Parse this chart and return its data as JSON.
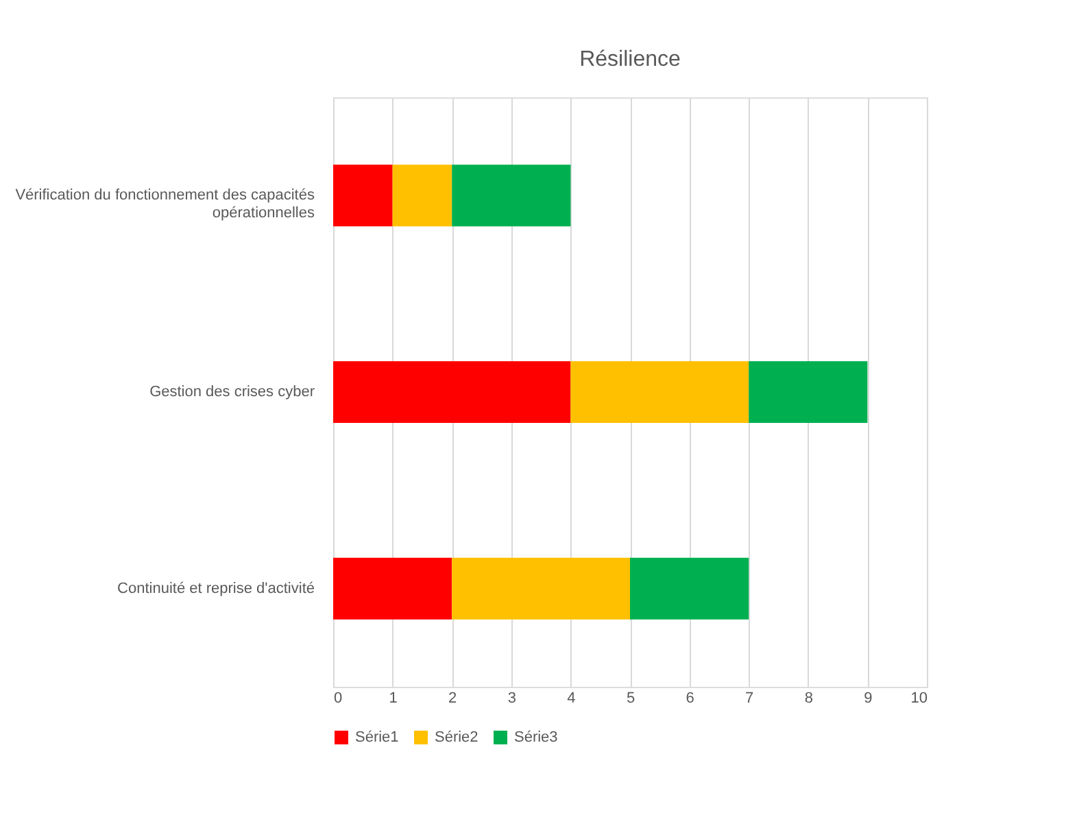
{
  "chart_data": {
    "type": "bar",
    "orientation": "horizontal",
    "stacked": true,
    "title": "Résilience",
    "categories": [
      "Vérification du fonctionnement des capacités opérationnelles",
      "Gestion des crises cyber",
      "Continuité et reprise d'activité"
    ],
    "series": [
      {
        "name": "Série1",
        "color": "#ff0000",
        "values": [
          1,
          4,
          2
        ]
      },
      {
        "name": "Série2",
        "color": "#ffc000",
        "values": [
          1,
          3,
          3
        ]
      },
      {
        "name": "Série3",
        "color": "#00b050",
        "values": [
          2,
          2,
          2
        ]
      }
    ],
    "xlim": [
      0,
      10
    ],
    "xticks": [
      0,
      1,
      2,
      3,
      4,
      5,
      6,
      7,
      8,
      9,
      10
    ],
    "grid": "x",
    "legend": "bottom"
  }
}
